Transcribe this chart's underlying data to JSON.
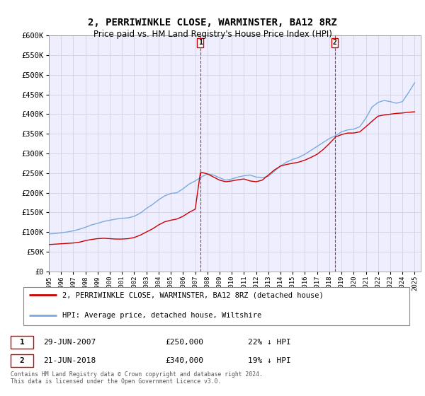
{
  "title": "2, PERRIWINKLE CLOSE, WARMINSTER, BA12 8RZ",
  "subtitle": "Price paid vs. HM Land Registry's House Price Index (HPI)",
  "ylim": [
    0,
    600000
  ],
  "ytick_vals": [
    0,
    50000,
    100000,
    150000,
    200000,
    250000,
    300000,
    350000,
    400000,
    450000,
    500000,
    550000,
    600000
  ],
  "sale1_date": "29-JUN-2007",
  "sale1_price": 250000,
  "sale1_pct": "22% ↓ HPI",
  "sale2_date": "21-JUN-2018",
  "sale2_price": 340000,
  "sale2_pct": "19% ↓ HPI",
  "legend_property": "2, PERRIWINKLE CLOSE, WARMINSTER, BA12 8RZ (detached house)",
  "legend_hpi": "HPI: Average price, detached house, Wiltshire",
  "footnote": "Contains HM Land Registry data © Crown copyright and database right 2024.\nThis data is licensed under the Open Government Licence v3.0.",
  "property_color": "#cc0000",
  "hpi_color": "#7aaadd",
  "bg_color": "#ffffff",
  "plot_bg_color": "#eeeeff",
  "grid_color": "#ccccdd",
  "sale_vline_color": "#cc0000",
  "hpi_years": [
    1995,
    1995.5,
    1996,
    1996.5,
    1997,
    1997.5,
    1998,
    1998.5,
    1999,
    1999.5,
    2000,
    2000.5,
    2001,
    2001.5,
    2002,
    2002.5,
    2003,
    2003.5,
    2004,
    2004.5,
    2005,
    2005.5,
    2006,
    2006.5,
    2007,
    2007.5,
    2008,
    2008.5,
    2009,
    2009.5,
    2010,
    2010.5,
    2011,
    2011.5,
    2012,
    2012.5,
    2013,
    2013.5,
    2014,
    2014.5,
    2015,
    2015.5,
    2016,
    2016.5,
    2017,
    2017.5,
    2018,
    2018.5,
    2019,
    2019.5,
    2020,
    2020.5,
    2021,
    2021.5,
    2022,
    2022.5,
    2023,
    2023.5,
    2024,
    2024.5,
    2025
  ],
  "hpi_values": [
    95000,
    96000,
    98000,
    100000,
    103000,
    107000,
    112000,
    118000,
    122000,
    127000,
    130000,
    133000,
    135000,
    136000,
    140000,
    148000,
    160000,
    170000,
    182000,
    192000,
    198000,
    200000,
    210000,
    222000,
    230000,
    240000,
    248000,
    245000,
    238000,
    232000,
    235000,
    240000,
    243000,
    245000,
    240000,
    238000,
    242000,
    255000,
    268000,
    278000,
    285000,
    290000,
    298000,
    308000,
    318000,
    328000,
    338000,
    345000,
    355000,
    360000,
    362000,
    368000,
    390000,
    418000,
    430000,
    435000,
    432000,
    428000,
    432000,
    455000,
    480000
  ],
  "property_years": [
    1995,
    1995.5,
    1996,
    1996.5,
    1997,
    1997.5,
    1998,
    1998.5,
    1999,
    1999.5,
    2000,
    2000.5,
    2001,
    2001.5,
    2002,
    2002.5,
    2003,
    2003.5,
    2004,
    2004.5,
    2005,
    2005.5,
    2006,
    2006.5,
    2007,
    2007.42,
    2007.5,
    2008,
    2008.5,
    2009,
    2009.5,
    2010,
    2010.5,
    2011,
    2011.5,
    2012,
    2012.5,
    2013,
    2013.5,
    2014,
    2014.5,
    2015,
    2015.5,
    2016,
    2016.5,
    2017,
    2017.5,
    2018,
    2018.46,
    2018.5,
    2019,
    2019.5,
    2020,
    2020.5,
    2021,
    2021.5,
    2022,
    2022.5,
    2023,
    2023.5,
    2024,
    2024.5,
    2025
  ],
  "property_values": [
    68000,
    69000,
    70000,
    71000,
    72000,
    74000,
    78000,
    81000,
    83000,
    84000,
    83000,
    82000,
    82000,
    83000,
    86000,
    92000,
    100000,
    108000,
    118000,
    126000,
    130000,
    133000,
    140000,
    150000,
    158000,
    250000,
    252000,
    248000,
    240000,
    232000,
    228000,
    230000,
    233000,
    235000,
    230000,
    228000,
    232000,
    245000,
    258000,
    268000,
    272000,
    275000,
    278000,
    283000,
    290000,
    298000,
    310000,
    325000,
    340000,
    342000,
    348000,
    352000,
    352000,
    355000,
    368000,
    382000,
    395000,
    398000,
    400000,
    402000,
    403000,
    405000,
    406000
  ],
  "sale1_x": 2007.42,
  "sale2_x": 2018.46,
  "xlim_start": 1995,
  "xlim_end": 2025.5,
  "xtick_years": [
    1995,
    1996,
    1997,
    1998,
    1999,
    2000,
    2001,
    2002,
    2003,
    2004,
    2005,
    2006,
    2007,
    2008,
    2009,
    2010,
    2011,
    2012,
    2013,
    2014,
    2015,
    2016,
    2017,
    2018,
    2019,
    2020,
    2021,
    2022,
    2023,
    2024,
    2025
  ]
}
